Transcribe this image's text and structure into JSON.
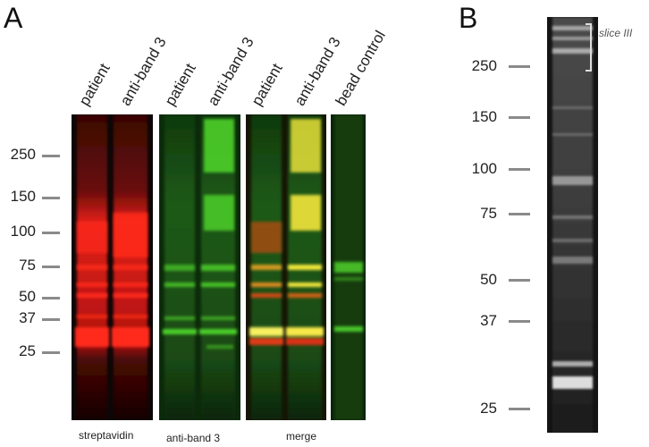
{
  "panel_a": {
    "letter": "A",
    "lane_labels": [
      "patient",
      "anti-band 3",
      "patient",
      "anti-band 3",
      "patient",
      "anti-band 3",
      "bead control"
    ],
    "mw_markers": [
      "250",
      "150",
      "100",
      "75",
      "50",
      "37",
      "25"
    ],
    "captions": {
      "streptavidin": "streptavidin",
      "anti_band3": "anti-band 3",
      "merge": "merge"
    }
  },
  "panel_b": {
    "letter": "B",
    "mw_markers": [
      "250",
      "150",
      "100",
      "75",
      "50",
      "37",
      "25"
    ],
    "slice_label": "slice III"
  },
  "colors": {
    "streptavidin_channel": "#ff2a1a",
    "anti_band3_channel": "#4ccf2a",
    "merge_overlap": "#f2e63a",
    "gel_background": "#141414",
    "marker_tick": "#8a8a8a"
  }
}
